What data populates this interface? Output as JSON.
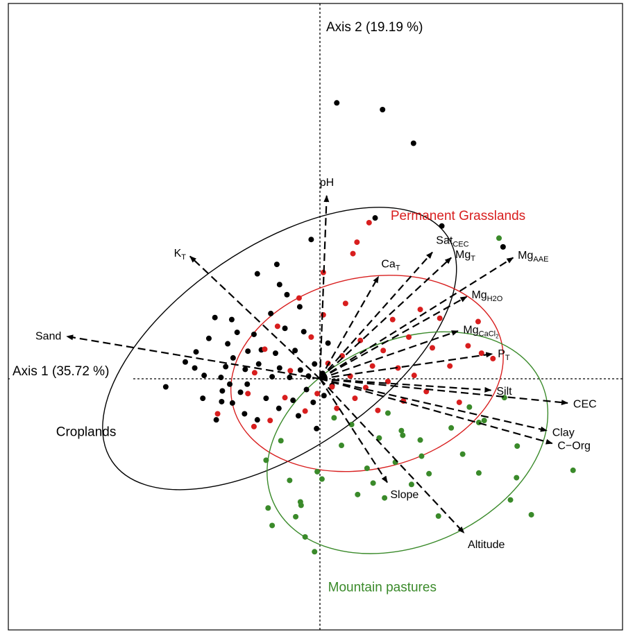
{
  "chart_data": {
    "type": "scatter",
    "subtype": "pca-biplot",
    "title": "",
    "xlabel": "Axis 1 (35.72 %)",
    "ylabel": "Axis 2 (19.19 %)",
    "xlim": [
      -4.6,
      4.4
    ],
    "ylim": [
      -3.4,
      5.4
    ],
    "grid": false,
    "legend": "none",
    "colors": {
      "Croplands": "#000000",
      "Permanent Grasslands": "#d81e1e",
      "Mountain pastures": "#3a8a2a",
      "axis": "#000000"
    },
    "groups": [
      {
        "name": "Croplands",
        "ellipse": {
          "center": [
            -0.6,
            0.45
          ],
          "radii": [
            3.0,
            1.52
          ],
          "angle_deg": 34
        },
        "points": [
          [
            -2.29,
            -0.12
          ],
          [
            -2.0,
            0.25
          ],
          [
            -1.84,
            0.4
          ],
          [
            -1.86,
            0.16
          ],
          [
            -1.74,
            -0.29
          ],
          [
            -1.72,
            0.05
          ],
          [
            -1.65,
            0.6
          ],
          [
            -1.54,
            -0.61
          ],
          [
            -1.47,
            0.02
          ],
          [
            -1.45,
            -0.18
          ],
          [
            -1.46,
            -0.34
          ],
          [
            -1.4,
            0.18
          ],
          [
            -1.37,
            0.52
          ],
          [
            -1.34,
            -0.08
          ],
          [
            -1.3,
            -0.36
          ],
          [
            -1.31,
            0.88
          ],
          [
            -1.29,
            0.31
          ],
          [
            -1.23,
            0.69
          ],
          [
            -1.18,
            -0.2
          ],
          [
            -1.12,
            -0.52
          ],
          [
            -1.11,
            0.14
          ],
          [
            -1.07,
            0.41
          ],
          [
            -1.08,
            -0.08
          ],
          [
            -0.98,
            0.66
          ],
          [
            -0.93,
            -0.61
          ],
          [
            -0.91,
            0.22
          ],
          [
            -0.87,
            0.43
          ],
          [
            -0.8,
            -0.29
          ],
          [
            -0.71,
            0.03
          ],
          [
            -0.66,
            0.38
          ],
          [
            -0.61,
            -0.44
          ],
          [
            -0.6,
            0.16
          ],
          [
            -0.52,
            0.75
          ],
          [
            -0.45,
            0.02
          ],
          [
            -0.4,
            -0.32
          ],
          [
            -0.37,
            0.42
          ],
          [
            -0.32,
            -0.55
          ],
          [
            -0.29,
            0.13
          ],
          [
            -0.24,
            0.7
          ],
          [
            -0.2,
            -0.16
          ],
          [
            -0.17,
            0.04
          ],
          [
            -0.1,
            -0.35
          ],
          [
            -0.08,
            0.22
          ],
          [
            -0.05,
            -0.74
          ],
          [
            0.04,
            0.08
          ],
          [
            0.06,
            -0.25
          ],
          [
            0.12,
            0.53
          ],
          [
            0.18,
            -0.1
          ],
          [
            -0.6,
            1.4
          ],
          [
            -0.3,
            1.07
          ],
          [
            -0.13,
            2.07
          ],
          [
            0.25,
            4.1
          ],
          [
            0.93,
            4.0
          ],
          [
            1.39,
            3.5
          ],
          [
            0.82,
            2.39
          ],
          [
            1.81,
            2.27
          ],
          [
            2.72,
            1.96
          ],
          [
            -0.73,
            0.97
          ],
          [
            -1.56,
            0.91
          ],
          [
            -0.49,
            1.25
          ],
          [
            -0.93,
            1.56
          ],
          [
            -0.64,
            1.7
          ]
        ]
      },
      {
        "name": "Permanent Grasslands",
        "ellipse": {
          "center": [
            0.7,
            0.08
          ],
          "radii": [
            2.05,
            1.42
          ],
          "angle_deg": 13
        },
        "points": [
          [
            -1.52,
            -0.52
          ],
          [
            -1.07,
            -0.22
          ],
          [
            -0.97,
            0.09
          ],
          [
            -0.82,
            0.44
          ],
          [
            -0.74,
            -0.62
          ],
          [
            -0.63,
            0.78
          ],
          [
            -0.52,
            -0.28
          ],
          [
            -0.44,
            0.12
          ],
          [
            -0.31,
            1.2
          ],
          [
            -0.22,
            -0.48
          ],
          [
            -0.13,
            0.62
          ],
          [
            -0.04,
            -0.22
          ],
          [
            0.05,
            0.95
          ],
          [
            0.12,
            0.23
          ],
          [
            0.18,
            -0.12
          ],
          [
            0.25,
            -0.44
          ],
          [
            0.33,
            0.34
          ],
          [
            0.38,
            1.12
          ],
          [
            0.45,
            0.04
          ],
          [
            0.52,
            -0.29
          ],
          [
            0.6,
            0.57
          ],
          [
            0.68,
            -0.13
          ],
          [
            0.73,
            2.32
          ],
          [
            0.78,
            0.19
          ],
          [
            0.86,
            -0.47
          ],
          [
            0.94,
            0.42
          ],
          [
            1.01,
            -0.04
          ],
          [
            1.08,
            0.88
          ],
          [
            1.16,
            0.16
          ],
          [
            1.24,
            -0.33
          ],
          [
            1.32,
            0.62
          ],
          [
            1.4,
            0.05
          ],
          [
            1.49,
            1.03
          ],
          [
            1.58,
            -0.19
          ],
          [
            1.67,
            0.46
          ],
          [
            1.78,
            0.9
          ],
          [
            1.93,
            0.19
          ],
          [
            2.07,
            -0.35
          ],
          [
            2.2,
            0.49
          ],
          [
            2.35,
            0.85
          ],
          [
            0.55,
            2.03
          ],
          [
            0.49,
            1.86
          ],
          [
            -0.98,
            -0.71
          ],
          [
            0.05,
            1.58
          ],
          [
            2.4,
            0.38
          ],
          [
            2.57,
            0.3
          ]
        ]
      },
      {
        "name": "Mountain pastures",
        "ellipse": {
          "center": [
            1.3,
            -0.95
          ],
          "radii": [
            2.18,
            1.52
          ],
          "angle_deg": 24
        },
        "points": [
          [
            -0.8,
            -1.21
          ],
          [
            -0.77,
            -1.92
          ],
          [
            -0.71,
            -2.18
          ],
          [
            -0.58,
            -0.92
          ],
          [
            -0.45,
            -1.51
          ],
          [
            -0.36,
            -2.05
          ],
          [
            -0.29,
            -1.83
          ],
          [
            -0.28,
            -1.88
          ],
          [
            -0.22,
            -2.35
          ],
          [
            -0.08,
            -2.57
          ],
          [
            -0.04,
            -1.38
          ],
          [
            0.03,
            -1.49
          ],
          [
            0.21,
            -0.58
          ],
          [
            0.32,
            -0.99
          ],
          [
            0.47,
            -0.68
          ],
          [
            0.56,
            -1.72
          ],
          [
            0.7,
            -1.33
          ],
          [
            0.79,
            -1.55
          ],
          [
            0.88,
            -0.88
          ],
          [
            0.96,
            -1.77
          ],
          [
            1.12,
            -1.24
          ],
          [
            1.21,
            -0.77
          ],
          [
            1.36,
            -1.57
          ],
          [
            1.49,
            -0.91
          ],
          [
            1.62,
            -1.41
          ],
          [
            1.76,
            -2.04
          ],
          [
            1.95,
            -0.73
          ],
          [
            2.12,
            -1.12
          ],
          [
            2.22,
            -0.42
          ],
          [
            2.36,
            -1.4
          ],
          [
            2.44,
            -0.62
          ],
          [
            2.93,
            -1.0
          ],
          [
            2.92,
            -1.47
          ],
          [
            2.83,
            -1.8
          ],
          [
            2.74,
            -0.28
          ],
          [
            3.76,
            -1.36
          ],
          [
            3.14,
            -2.02
          ],
          [
            2.36,
            -0.65
          ],
          [
            1.51,
            -1.15
          ],
          [
            2.66,
            2.09
          ],
          [
            1.01,
            -0.51
          ],
          [
            1.23,
            -0.84
          ]
        ]
      }
    ],
    "vectors": [
      {
        "label": "pH",
        "sub": "",
        "x": 0.1,
        "y": 2.72
      },
      {
        "label": "K",
        "sub": "T",
        "x": -1.93,
        "y": 1.82
      },
      {
        "label": "Sand",
        "sub": "",
        "x": -3.76,
        "y": 0.63
      },
      {
        "label": "Sat",
        "sub": "CEC",
        "x": 1.67,
        "y": 1.88
      },
      {
        "label": "Ca",
        "sub": "T",
        "x": 0.87,
        "y": 1.52
      },
      {
        "label": "Mg",
        "sub": "T",
        "x": 1.95,
        "y": 1.8
      },
      {
        "label": "Mg",
        "sub": "AAE",
        "x": 2.87,
        "y": 1.8
      },
      {
        "label": "Mg",
        "sub": "H2O",
        "x": 2.18,
        "y": 1.22
      },
      {
        "label": "Mg",
        "sub": "CaCl",
        "sub2": "2",
        "x": 2.05,
        "y": 0.71
      },
      {
        "label": "P",
        "sub": "T",
        "x": 2.56,
        "y": 0.37
      },
      {
        "label": "Silt",
        "sub": "",
        "x": 2.54,
        "y": -0.17
      },
      {
        "label": "CEC",
        "sub": "",
        "x": 3.68,
        "y": -0.36
      },
      {
        "label": "Clay",
        "sub": "",
        "x": 3.37,
        "y": -0.77
      },
      {
        "label": "C−Org",
        "sub": "",
        "x": 3.45,
        "y": -0.96
      },
      {
        "label": "Slope",
        "sub": "",
        "x": 1.0,
        "y": -1.54
      },
      {
        "label": "Altitude",
        "sub": "",
        "x": 2.14,
        "y": -2.29
      }
    ],
    "annotations": [
      {
        "text": "Permanent Grasslands",
        "color": "#d81e1e",
        "x": 1.05,
        "y": 2.36
      },
      {
        "text": "Croplands",
        "color": "#000000",
        "x": -3.92,
        "y": -0.85
      },
      {
        "text": "Mountain pastures",
        "color": "#3a8a2a",
        "x": 0.12,
        "y": -3.16
      }
    ]
  }
}
